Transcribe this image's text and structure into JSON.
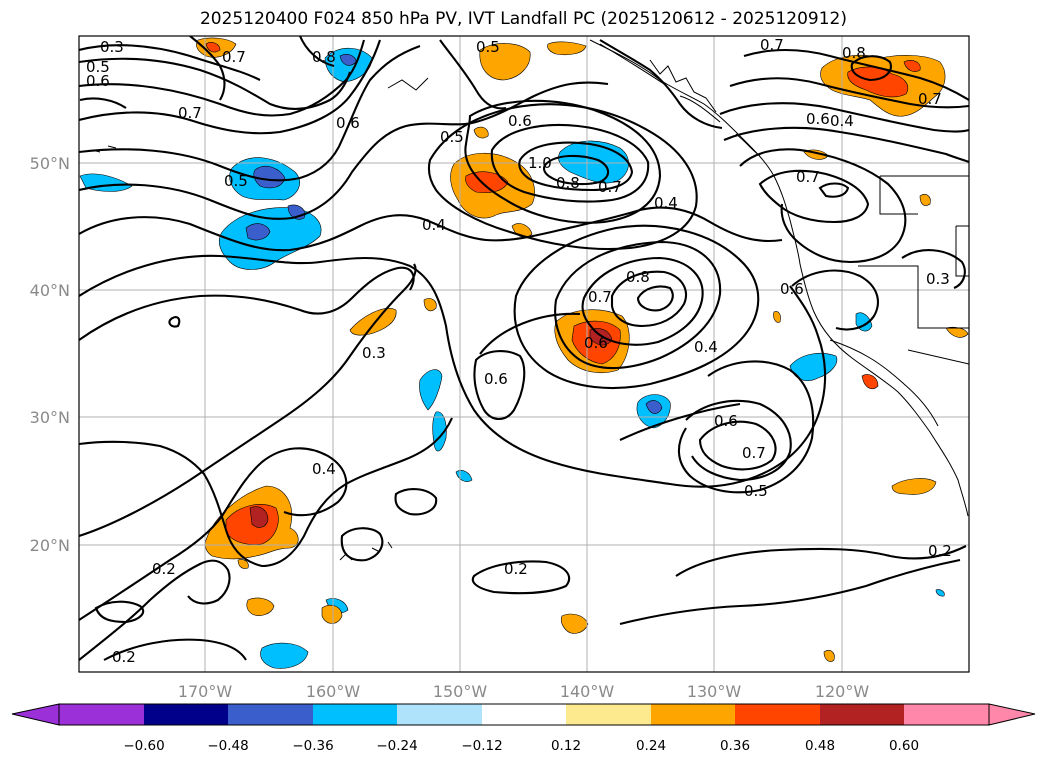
{
  "title": "2025120400 F024 850 hPa PV, IVT Landfall PC (2025120612 - 2025120912)",
  "lat_labels": [
    "50°N",
    "40°N",
    "30°N",
    "20°N"
  ],
  "lon_labels": [
    "170°W",
    "160°W",
    "150°W",
    "140°W",
    "130°W",
    "120°W"
  ],
  "colorbar": {
    "colors": [
      "#9b30d9",
      "#00008b",
      "#3a5fcd",
      "#00bfff",
      "#aee3fb",
      "#ffffff",
      "#fdea8f",
      "#ffa500",
      "#ff4500",
      "#b22222",
      "#ff88aa"
    ],
    "tick_labels": [
      "−0.60",
      "−0.48",
      "−0.36",
      "−0.24",
      "−0.12",
      "0.12",
      "0.24",
      "0.36",
      "0.48",
      "0.60"
    ]
  },
  "contour_labels": [
    "0.3",
    "0.5",
    "0.6",
    "0.7",
    "0.7",
    "0.8",
    "0.6",
    "0.5",
    "0.5",
    "0.7",
    "0.5",
    "0.6",
    "1.0",
    "0.8",
    "0.7",
    "0.4",
    "0.4",
    "0.6",
    "0.8",
    "0.4",
    "0.7",
    "0.8",
    "0.7",
    "0.6",
    "0.7",
    "0.3",
    "0.6",
    "0.6",
    "0.3",
    "0.4",
    "0.4",
    "0.6",
    "0.7",
    "0.5",
    "0.2",
    "0.2",
    "0.2",
    "0.2"
  ]
}
